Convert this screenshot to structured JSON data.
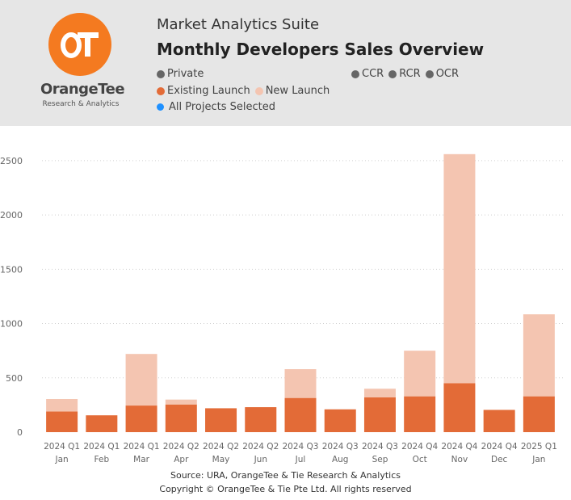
{
  "header": {
    "suite_title": "Market Analytics Suite",
    "report_title": "Monthly Developers Sales Overview",
    "logo_text": "OrangeTee",
    "logo_subtext": "Research & Analytics",
    "filters": {
      "private": "Private",
      "ccr": "CCR",
      "rcr": "RCR",
      "ocr": "OCR",
      "existing_launch": "Existing Launch",
      "new_launch": "New Launch",
      "all_projects": "All Projects Selected"
    },
    "colors": {
      "filter_grey": "#666666",
      "existing": "#e36b37",
      "new": "#f4c5b1",
      "selected_blue": "#1e90ff",
      "logo_orange": "#f47a20"
    }
  },
  "chart_data": {
    "type": "bar",
    "stacked": true,
    "categories": [
      [
        "2024 Q1",
        "Jan"
      ],
      [
        "2024 Q1",
        "Feb"
      ],
      [
        "2024 Q1",
        "Mar"
      ],
      [
        "2024 Q2",
        "Apr"
      ],
      [
        "2024 Q2",
        "May"
      ],
      [
        "2024 Q2",
        "Jun"
      ],
      [
        "2024 Q3",
        "Jul"
      ],
      [
        "2024 Q3",
        "Aug"
      ],
      [
        "2024 Q3",
        "Sep"
      ],
      [
        "2024 Q4",
        "Oct"
      ],
      [
        "2024 Q4",
        "Nov"
      ],
      [
        "2024 Q4",
        "Dec"
      ],
      [
        "2025 Q1",
        "Jan"
      ]
    ],
    "series": [
      {
        "name": "Existing Launch",
        "color": "#e36b37",
        "values": [
          190,
          155,
          245,
          255,
          220,
          230,
          315,
          210,
          320,
          330,
          450,
          205,
          330
        ]
      },
      {
        "name": "New Launch",
        "color": "#f4c5b1",
        "values": [
          115,
          0,
          475,
          45,
          0,
          0,
          265,
          0,
          80,
          420,
          2110,
          0,
          755
        ]
      }
    ],
    "ylim": [
      0,
      2700
    ],
    "yticks": [
      0,
      500,
      1000,
      1500,
      2000,
      2500
    ],
    "grid": true
  },
  "footer": {
    "source": "Source: URA, OrangeTee & Tie Research & Analytics",
    "copyright": "Copyright © OrangeTee & Tie Pte Ltd. All rights reserved"
  }
}
